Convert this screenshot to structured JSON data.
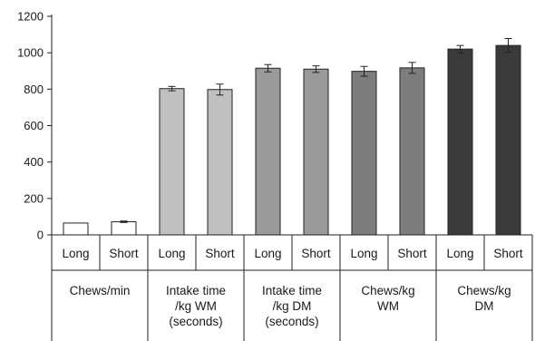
{
  "chart_data": {
    "type": "bar",
    "ylim": [
      0,
      1200
    ],
    "yticks": [
      0,
      200,
      400,
      600,
      800,
      1000,
      1200
    ],
    "grid": false,
    "groups": [
      {
        "label_lines": [
          "Chews/min"
        ],
        "bars": [
          {
            "category": "Long",
            "value": 65,
            "error": 0,
            "color": "#ffffff"
          },
          {
            "category": "Short",
            "value": 72,
            "error": 4,
            "color": "#ffffff"
          }
        ]
      },
      {
        "label_lines": [
          "Intake time",
          "/kg WM",
          "(seconds)"
        ],
        "bars": [
          {
            "category": "Long",
            "value": 803,
            "error": 12,
            "color": "#c0c0c0"
          },
          {
            "category": "Short",
            "value": 798,
            "error": 30,
            "color": "#c0c0c0"
          }
        ]
      },
      {
        "label_lines": [
          "Intake time",
          "/kg DM",
          "(seconds)"
        ],
        "bars": [
          {
            "category": "Long",
            "value": 915,
            "error": 20,
            "color": "#9a9a9a"
          },
          {
            "category": "Short",
            "value": 910,
            "error": 18,
            "color": "#9a9a9a"
          }
        ]
      },
      {
        "label_lines": [
          "Chews/kg",
          "WM"
        ],
        "bars": [
          {
            "category": "Long",
            "value": 898,
            "error": 27,
            "color": "#7d7d7d"
          },
          {
            "category": "Short",
            "value": 917,
            "error": 30,
            "color": "#7d7d7d"
          }
        ]
      },
      {
        "label_lines": [
          "Chews/kg",
          "DM"
        ],
        "bars": [
          {
            "category": "Long",
            "value": 1020,
            "error": 20,
            "color": "#3a3a3a"
          },
          {
            "category": "Short",
            "value": 1040,
            "error": 38,
            "color": "#3a3a3a"
          }
        ]
      }
    ]
  }
}
